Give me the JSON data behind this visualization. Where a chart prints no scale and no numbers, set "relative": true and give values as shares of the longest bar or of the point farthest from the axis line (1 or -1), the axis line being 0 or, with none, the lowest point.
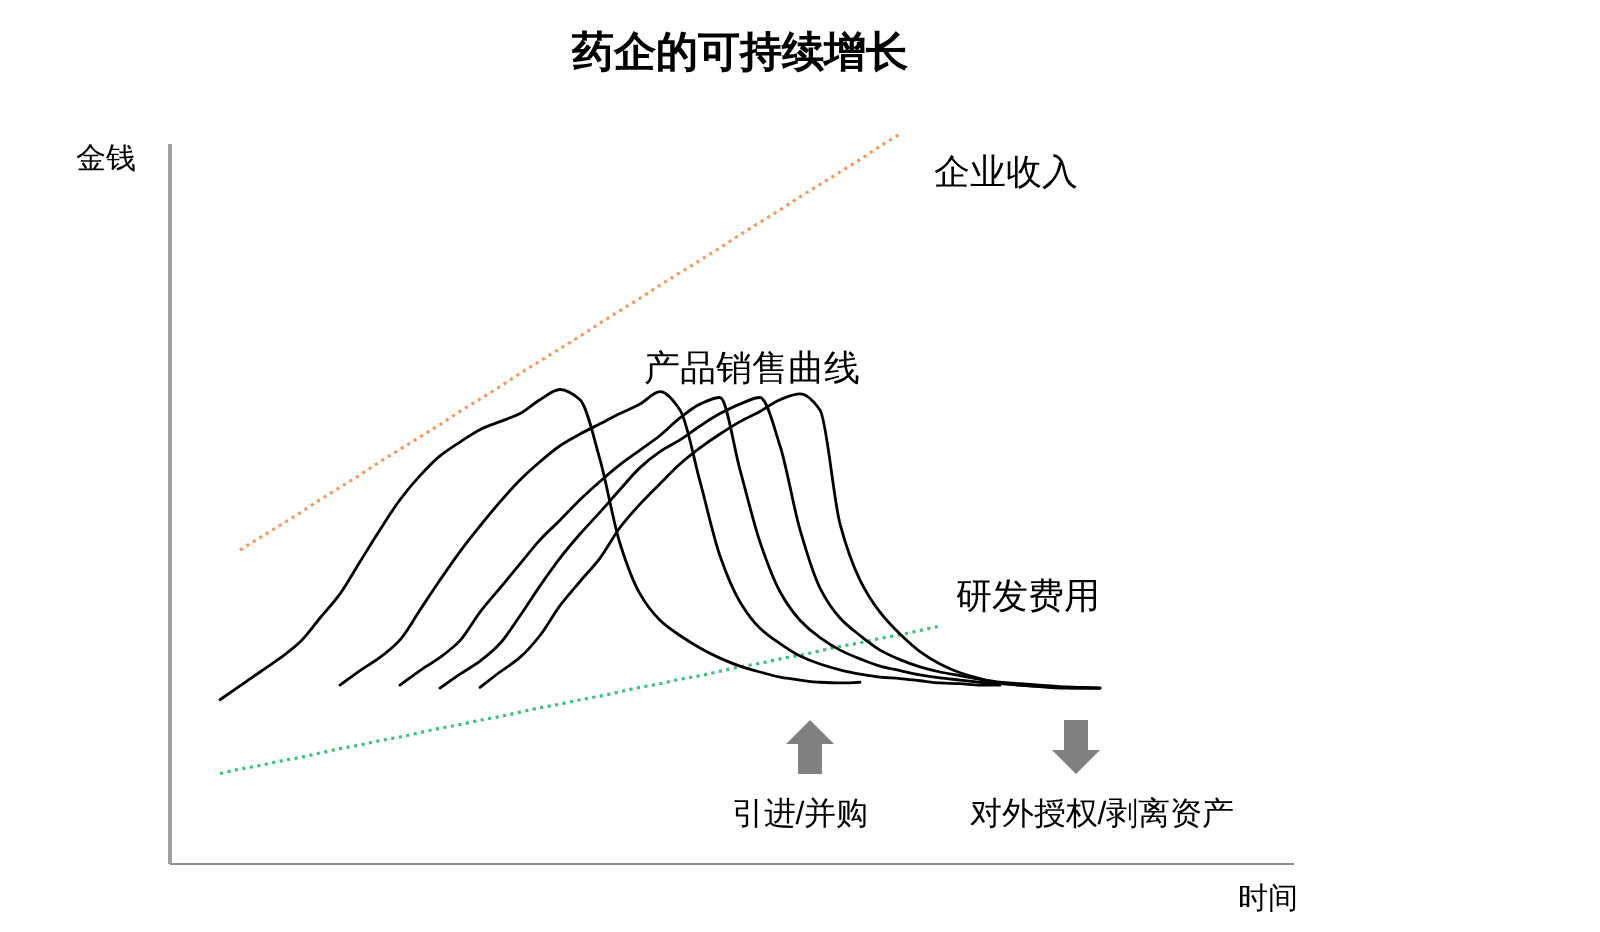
{
  "chart_data": {
    "type": "line",
    "title": "药企的可持续增长",
    "xlabel": "时间",
    "ylabel": "金钱",
    "relative": true,
    "categories": [
      null,
      null,
      null,
      null,
      null,
      null,
      null,
      null,
      null,
      null,
      null,
      null,
      null,
      null,
      null,
      null,
      null,
      null,
      null,
      null,
      null,
      null,
      null,
      null,
      null,
      null,
      null,
      null,
      null,
      null,
      null,
      null,
      null,
      null,
      null,
      null,
      null,
      null,
      null,
      null,
      null,
      null,
      null,
      null,
      null
    ],
    "series": [
      {
        "name": "企业收入",
        "color": "#f79a5a",
        "line_style": "dotted",
        "values": [
          null,
          0.43,
          0.447,
          0.464,
          0.481,
          0.499,
          0.516,
          0.533,
          0.551,
          0.568,
          0.585,
          0.602,
          0.62,
          0.637,
          0.654,
          0.672,
          0.689,
          0.706,
          0.723,
          0.741,
          0.758,
          0.775,
          0.793,
          0.81,
          0.827,
          0.844,
          0.862,
          0.879,
          0.896,
          0.914,
          0.931,
          0.948,
          0.965,
          0.983,
          1.0,
          null,
          null,
          null,
          null,
          null,
          null,
          null,
          null,
          null,
          null
        ]
      },
      {
        "name": "研发费用",
        "color": "#3cc47c",
        "line_style": "dotted",
        "values": [
          0.124,
          0.13,
          0.135,
          0.141,
          0.146,
          0.152,
          0.158,
          0.163,
          0.169,
          0.174,
          0.18,
          0.186,
          0.191,
          0.197,
          0.202,
          0.208,
          0.214,
          0.219,
          0.225,
          0.23,
          0.236,
          0.242,
          0.247,
          0.253,
          0.258,
          0.264,
          0.27,
          0.275,
          0.281,
          0.286,
          0.292,
          0.298,
          0.303,
          0.309,
          0.314,
          0.32,
          0.326,
          null,
          null,
          null,
          null,
          null,
          null,
          null,
          null
        ]
      },
      {
        "color": "#000000",
        "values": [
          0.225,
          0.244,
          0.263,
          0.282,
          0.304,
          0.337,
          0.37,
          0.414,
          0.458,
          0.499,
          0.532,
          0.559,
          0.578,
          0.595,
          0.606,
          0.617,
          0.636,
          0.65,
          0.636,
          0.554,
          0.439,
          0.37,
          0.334,
          0.313,
          0.296,
          0.282,
          0.271,
          0.263,
          0.256,
          0.252,
          0.249,
          0.248,
          0.249,
          null,
          null,
          null,
          null,
          null,
          null,
          null,
          null,
          null,
          null,
          null,
          null
        ]
      },
      {
        "color": "#000000",
        "values": [
          null,
          null,
          null,
          null,
          null,
          null,
          0.245,
          0.265,
          0.283,
          0.307,
          0.348,
          0.389,
          0.428,
          0.463,
          0.496,
          0.526,
          0.551,
          0.573,
          0.589,
          0.603,
          0.617,
          0.63,
          0.647,
          0.622,
          0.524,
          0.422,
          0.359,
          0.323,
          0.302,
          0.285,
          0.274,
          0.266,
          0.26,
          0.256,
          0.254,
          0.251,
          0.248,
          0.247,
          0.245,
          0.245,
          null,
          null,
          null,
          null,
          null
        ]
      },
      {
        "color": "#000000",
        "values": [
          null,
          null,
          null,
          null,
          null,
          null,
          null,
          null,
          null,
          0.245,
          0.265,
          0.283,
          0.306,
          0.345,
          0.378,
          0.411,
          0.444,
          0.471,
          0.499,
          0.524,
          0.547,
          0.567,
          0.587,
          0.611,
          0.63,
          0.639,
          0.54,
          0.441,
          0.373,
          0.334,
          0.31,
          0.293,
          0.281,
          0.271,
          0.265,
          0.259,
          0.255,
          0.252,
          0.249,
          0.247,
          0.245,
          0.243,
          0.242,
          0.241,
          0.241
        ]
      },
      {
        "color": "#000000",
        "values": [
          null,
          null,
          null,
          null,
          null,
          null,
          null,
          null,
          null,
          null,
          null,
          0.241,
          0.26,
          0.278,
          0.302,
          0.34,
          0.381,
          0.419,
          0.452,
          0.482,
          0.513,
          0.543,
          0.565,
          0.581,
          0.6,
          0.617,
          0.63,
          0.639,
          0.573,
          0.458,
          0.378,
          0.337,
          0.313,
          0.293,
          0.28,
          0.27,
          0.263,
          0.258,
          0.253,
          0.249,
          0.247,
          0.245,
          0.243,
          0.242,
          0.241
        ]
      },
      {
        "color": "#000000",
        "values": [
          null,
          null,
          null,
          null,
          null,
          null,
          null,
          null,
          null,
          null,
          null,
          null,
          null,
          0.242,
          0.263,
          0.283,
          0.313,
          0.354,
          0.387,
          0.419,
          0.461,
          0.493,
          0.521,
          0.548,
          0.57,
          0.589,
          0.606,
          0.62,
          0.636,
          0.644,
          0.622,
          0.466,
          0.389,
          0.345,
          0.315,
          0.291,
          0.274,
          0.262,
          0.254,
          0.248,
          0.245,
          0.243,
          0.241,
          0.241,
          0.241
        ]
      }
    ],
    "annotations": [
      "产品销售曲线",
      "引进/并购",
      "对外授权/剥离资产"
    ]
  }
}
